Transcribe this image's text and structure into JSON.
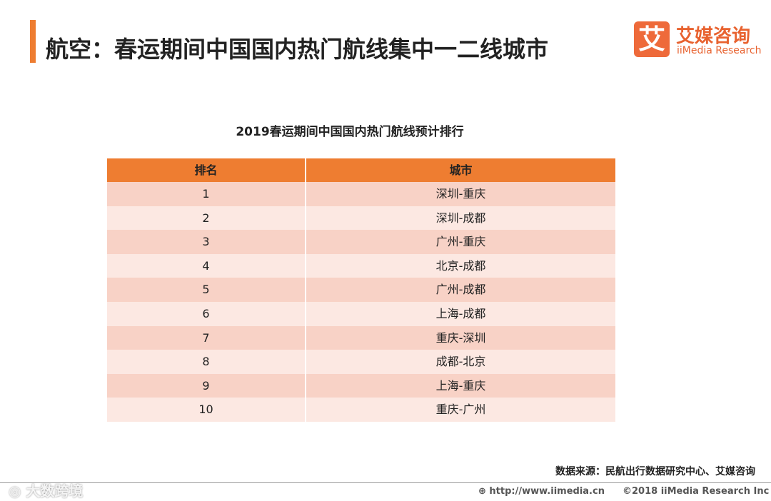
{
  "header": {
    "title": "航空：春运期间中国国内热门航线集中一二线城市",
    "logo_mark": "艾",
    "logo_name": "艾媒咨询",
    "logo_sub": "iiMedia Research"
  },
  "table": {
    "title": "2019春运期间中国国内热门航线预计排行",
    "columns": [
      "排名",
      "城市"
    ],
    "rows": [
      [
        "1",
        "深圳-重庆"
      ],
      [
        "2",
        "深圳-成都"
      ],
      [
        "3",
        "广州-重庆"
      ],
      [
        "4",
        "北京-成都"
      ],
      [
        "5",
        "广州-成都"
      ],
      [
        "6",
        "上海-成都"
      ],
      [
        "7",
        "重庆-深圳"
      ],
      [
        "8",
        "成都-北京"
      ],
      [
        "9",
        "上海-重庆"
      ],
      [
        "10",
        "重庆-广州"
      ]
    ]
  },
  "source": "数据来源：民航出行数据研究中心、艾媒咨询",
  "footer": {
    "url": "http://www.iimedia.cn",
    "copyright": "©2018  iiMedia Research  Inc",
    "watermark": "大数跨境"
  }
}
